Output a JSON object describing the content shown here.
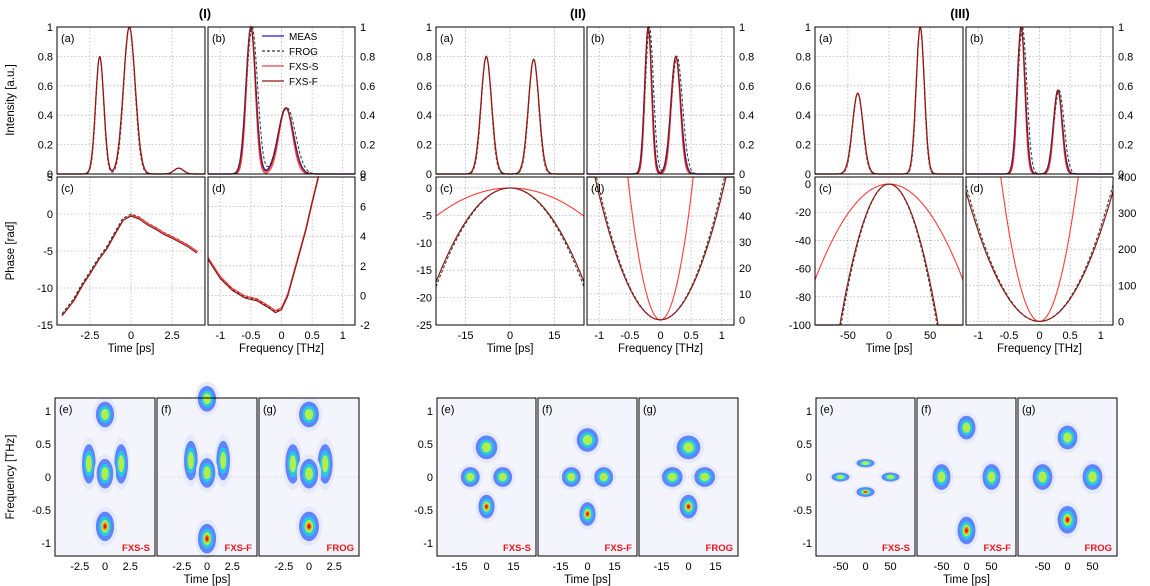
{
  "figure": {
    "group_titles": [
      "(I)",
      "(II)",
      "(III)"
    ],
    "panel_letters": [
      "(a)",
      "(b)",
      "(c)",
      "(d)",
      "(e)",
      "(f)",
      "(g)"
    ],
    "labels": {
      "intensity": "Intensity [a.u.]",
      "phase": "Phase [rad]",
      "time": "Time [ps]",
      "frequency": "Frequency [THz]",
      "spec_freq": "Frequency [THz]"
    },
    "legend": [
      "MEAS",
      "FROG",
      "FXS-S",
      "FXS-F"
    ],
    "map_labels": [
      "FXS-S",
      "FXS-F",
      "FROG"
    ],
    "colors": {
      "meas": "#1f1fd6",
      "frog": "#333333",
      "fxs_s": "#ff3a3a",
      "fxs_f": "#8b1a1a",
      "grid": "#b8b8b8"
    }
  },
  "chart_data": [
    {
      "id": "I",
      "type": "line",
      "time_intensity": {
        "xlim": [
          -4.5,
          4.5
        ],
        "ylim": [
          0,
          1
        ],
        "xticks": [
          "-2.5",
          "0",
          "2.5"
        ],
        "yticks": [
          "0",
          "0.2",
          "0.4",
          "0.6",
          "0.8",
          "1"
        ],
        "peaks": [
          {
            "center": -1.9,
            "amp": 0.8,
            "width": 0.35
          },
          {
            "center": -0.1,
            "amp": 1.0,
            "width": 0.5
          },
          {
            "center": 2.9,
            "amp": 0.04,
            "width": 0.4
          }
        ]
      },
      "freq_intensity": {
        "xlim": [
          -1.2,
          1.2
        ],
        "ylim": [
          0,
          1
        ],
        "xticks": [
          "-1",
          "-0.5",
          "0",
          "0.5",
          "1"
        ],
        "yticks": [
          "0",
          "0.2",
          "0.4",
          "0.6",
          "0.8",
          "1"
        ],
        "peaks": [
          {
            "center": -0.5,
            "amp": 1.0,
            "width": 0.11
          },
          {
            "center": 0.07,
            "amp": 0.45,
            "width": 0.17
          }
        ]
      },
      "time_phase": {
        "xlim": [
          -4.5,
          4.5
        ],
        "ylim": [
          -15,
          5
        ],
        "xticks": [
          "-2.5",
          "0",
          "2.5"
        ],
        "yticks": [
          "-15",
          "-10",
          "-5",
          "0",
          "5"
        ],
        "x": [
          -4.2,
          -3.5,
          -3.0,
          -2.5,
          -2.0,
          -1.5,
          -1.0,
          -0.5,
          0.0,
          0.5,
          1.0,
          1.5,
          2.0,
          2.5,
          3.0,
          3.5,
          4.0
        ],
        "y": [
          -13.5,
          -11.5,
          -9.5,
          -7.8,
          -6.0,
          -4.5,
          -2.5,
          -0.6,
          0.0,
          -0.4,
          -1.2,
          -1.8,
          -2.5,
          -3.0,
          -3.6,
          -4.2,
          -5.0
        ]
      },
      "freq_phase": {
        "xlim": [
          -1.2,
          1.2
        ],
        "ylim": [
          -2,
          8
        ],
        "xticks": [
          "-1",
          "-0.5",
          "0",
          "0.5",
          "1"
        ],
        "yticks": [
          "-2",
          "0",
          "2",
          "4",
          "6",
          "8"
        ],
        "x": [
          -1.2,
          -1.0,
          -0.8,
          -0.6,
          -0.4,
          -0.2,
          -0.1,
          0.0,
          0.1,
          0.2,
          0.3,
          0.4,
          0.5,
          0.6
        ],
        "y": [
          2.5,
          1.2,
          0.4,
          -0.1,
          -0.3,
          -0.8,
          -1.1,
          -0.9,
          0.0,
          1.5,
          3.0,
          4.5,
          6.3,
          8.0
        ]
      },
      "maps": {
        "xticks": [
          "-2.5",
          "0",
          "2.5"
        ],
        "yticks": [
          "-1",
          "-0.5",
          "0",
          "0.5",
          "1"
        ],
        "blobs": [
          {
            "t": 0.0,
            "f": 0.95,
            "st": 0.6,
            "sf": 0.13,
            "a": 0.5
          },
          {
            "t": -1.6,
            "f": 0.2,
            "st": 0.45,
            "sf": 0.2,
            "a": 0.45
          },
          {
            "t": 1.6,
            "f": 0.2,
            "st": 0.45,
            "sf": 0.2,
            "a": 0.45
          },
          {
            "t": 0.0,
            "f": 0.05,
            "st": 0.55,
            "sf": 0.15,
            "a": 0.55
          },
          {
            "t": 0.0,
            "f": -0.75,
            "st": 0.6,
            "sf": 0.15,
            "a": 1.0
          }
        ]
      }
    },
    {
      "id": "II",
      "type": "line",
      "time_intensity": {
        "xlim": [
          -25,
          25
        ],
        "ylim": [
          0,
          1
        ],
        "xticks": [
          "-15",
          "0",
          "15"
        ],
        "yticks": [
          "0",
          "0.2",
          "0.4",
          "0.6",
          "0.8",
          "1"
        ],
        "peaks": [
          {
            "center": -8,
            "amp": 0.8,
            "width": 2.5
          },
          {
            "center": 8,
            "amp": 0.78,
            "width": 2.5
          }
        ]
      },
      "freq_intensity": {
        "xlim": [
          -1.2,
          1.2
        ],
        "ylim": [
          0,
          1
        ],
        "xticks": [
          "-1",
          "-0.5",
          "0",
          "0.5",
          "1"
        ],
        "yticks": [
          "0",
          "0.2",
          "0.4",
          "0.6",
          "0.8",
          "1"
        ],
        "peaks": [
          {
            "center": -0.2,
            "amp": 1.0,
            "width": 0.08
          },
          {
            "center": 0.25,
            "amp": 0.8,
            "width": 0.11
          }
        ]
      },
      "time_phase": {
        "xlim": [
          -25,
          25
        ],
        "ylim": [
          -25,
          2
        ],
        "xticks": [
          "-15",
          "0",
          "15"
        ],
        "yticks": [
          "-25",
          "-20",
          "-15",
          "-10",
          "-5",
          "0"
        ],
        "curvature": 0.0275
      },
      "freq_phase": {
        "xlim": [
          -1.2,
          1.2
        ],
        "ylim": [
          -2,
          55
        ],
        "xticks": [
          "-1",
          "-0.5",
          "0",
          "0.5",
          "1"
        ],
        "yticks": [
          "0",
          "10",
          "20",
          "30",
          "40",
          "50"
        ],
        "curvature": 48
      },
      "maps": {
        "xticks": [
          "-15",
          "0",
          "15"
        ],
        "yticks": [
          "-1",
          "-0.5",
          "0",
          "0.5",
          "1"
        ],
        "blobs": [
          {
            "t": 0,
            "f": 0.45,
            "st": 4,
            "sf": 0.12,
            "a": 0.55
          },
          {
            "t": -9,
            "f": 0.0,
            "st": 3.5,
            "sf": 0.1,
            "a": 0.6
          },
          {
            "t": 9,
            "f": 0.0,
            "st": 3.5,
            "sf": 0.1,
            "a": 0.6
          },
          {
            "t": 0,
            "f": -0.45,
            "st": 3,
            "sf": 0.12,
            "a": 1.0
          }
        ]
      }
    },
    {
      "id": "III",
      "type": "line",
      "time_intensity": {
        "xlim": [
          -90,
          90
        ],
        "ylim": [
          0,
          1
        ],
        "xticks": [
          "-50",
          "0",
          "50"
        ],
        "yticks": [
          "0",
          "0.2",
          "0.4",
          "0.6",
          "0.8",
          "1"
        ],
        "peaks": [
          {
            "center": -38,
            "amp": 0.55,
            "width": 9
          },
          {
            "center": 38,
            "amp": 1.0,
            "width": 7
          }
        ]
      },
      "freq_intensity": {
        "xlim": [
          -1.2,
          1.2
        ],
        "ylim": [
          0,
          1
        ],
        "xticks": [
          "-1",
          "-0.5",
          "0",
          "0.5",
          "1"
        ],
        "yticks": [
          "0",
          "0.2",
          "0.4",
          "0.6",
          "0.8",
          "1"
        ],
        "peaks": [
          {
            "center": -0.3,
            "amp": 1.0,
            "width": 0.09
          },
          {
            "center": 0.3,
            "amp": 0.57,
            "width": 0.1
          }
        ]
      },
      "time_phase": {
        "xlim": [
          -90,
          90
        ],
        "ylim": [
          -100,
          5
        ],
        "xticks": [
          "-50",
          "0",
          "50"
        ],
        "yticks": [
          "-100",
          "-80",
          "-60",
          "-40",
          "-20",
          "0"
        ],
        "curvature": 0.028
      },
      "freq_phase": {
        "xlim": [
          -1.2,
          1.2
        ],
        "ylim": [
          -10,
          400
        ],
        "xticks": [
          "-1",
          "-0.5",
          "0",
          "0.5",
          "1"
        ],
        "yticks": [
          "0",
          "100",
          "200",
          "300",
          "400"
        ],
        "curvature": 250
      },
      "maps": {
        "xticks": [
          "-50",
          "0",
          "50"
        ],
        "yticks": [
          "-1",
          "-0.5",
          "0",
          "0.5",
          "1"
        ],
        "blobs": [
          {
            "t": 0,
            "f": 0.6,
            "st": 12,
            "sf": 0.12,
            "a": 0.6
          },
          {
            "t": -50,
            "f": 0.0,
            "st": 12,
            "sf": 0.13,
            "a": 0.6
          },
          {
            "t": 50,
            "f": 0.0,
            "st": 12,
            "sf": 0.13,
            "a": 0.6
          },
          {
            "t": 0,
            "f": -0.65,
            "st": 12,
            "sf": 0.14,
            "a": 1.0
          }
        ]
      }
    }
  ]
}
